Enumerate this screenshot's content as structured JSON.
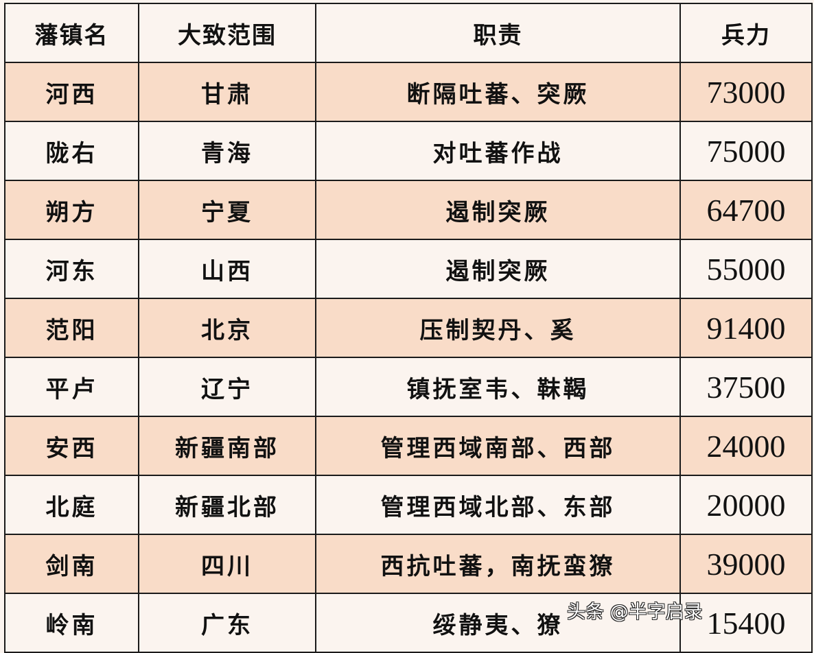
{
  "headers": [
    "藩镇名",
    "大致范围",
    "职责",
    "兵力"
  ],
  "rows": [
    [
      "河西",
      "甘肃",
      "断隔吐蕃、突厥",
      "73000"
    ],
    [
      "陇右",
      "青海",
      "对吐蕃作战",
      "75000"
    ],
    [
      "朔方",
      "宁夏",
      "遏制突厥",
      "64700"
    ],
    [
      "河东",
      "山西",
      "遏制突厥",
      "55000"
    ],
    [
      "范阳",
      "北京",
      "压制契丹、奚",
      "91400"
    ],
    [
      "平卢",
      "辽宁",
      "镇抚室韦、靺鞨",
      "37500"
    ],
    [
      "安西",
      "新疆南部",
      "管理西域南部、西部",
      "24000"
    ],
    [
      "北庭",
      "新疆北部",
      "管理西域北部、东部",
      "20000"
    ],
    [
      "剑南",
      "四川",
      "西抗吐蕃，南抚蛮獠",
      "39000"
    ],
    [
      "岭南",
      "广东",
      "绥静夷、獠",
      "15400"
    ]
  ],
  "watermark": "头条 @半字启录",
  "colors": {
    "row_alt": "#f9dcc8",
    "row_plain": "#fbf4ef",
    "border": "#1a1a1a"
  }
}
